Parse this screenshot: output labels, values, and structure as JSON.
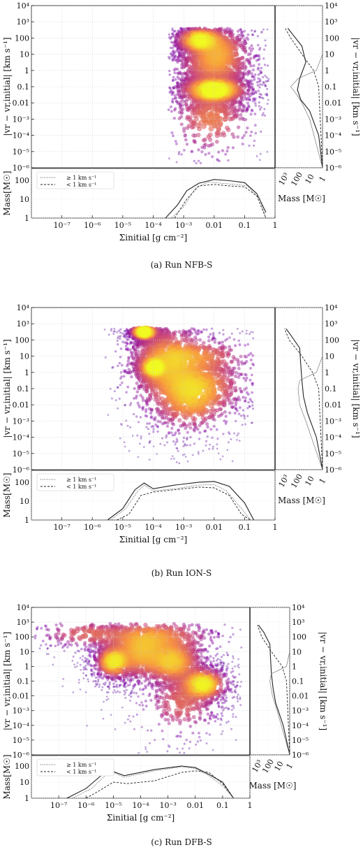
{
  "chart_data": [
    {
      "type": "heatmap",
      "caption": "(a) Run NFB-S",
      "xlabel": "Σinitial [g cm⁻²]",
      "ylabel_left": "|vr − vr,initial| [km s⁻¹]",
      "ylabel_right": "|vr − vr,initial| [km s⁻¹]",
      "hist_ylabel": "Mass[M☉]",
      "side_xlabel": "Mass [M☉]",
      "xlim": [
        1e-08,
        1
      ],
      "ylim": [
        1e-06,
        10000.0
      ],
      "hist_ylim": [
        1,
        300
      ],
      "side_xlim": [
        5000,
        1
      ],
      "x_tick_labels": [
        "10⁻⁷",
        "10⁻⁶",
        "10⁻⁵",
        "10⁻⁴",
        "10⁻³",
        "0.01",
        "0.1",
        "1"
      ],
      "y_tick_labels": [
        "10⁻⁶",
        "10⁻⁵",
        "10⁻⁴",
        "10⁻³",
        "0.01",
        "0.1",
        "1",
        "10",
        "100",
        "10³",
        "10⁴"
      ],
      "hist_tick_labels": [
        "1",
        "10",
        "100"
      ],
      "side_tick_labels": [
        "10³",
        "100",
        "10",
        "1"
      ],
      "legend": [
        "≥ 1 km s⁻¹",
        "< 1 km s⁻¹"
      ],
      "blobs": [
        {
          "x": -2.0,
          "y": -1.2,
          "sx": 0.5,
          "sy": 0.35,
          "w": 1.0
        },
        {
          "x": -2.5,
          "y": 1.9,
          "sx": 0.35,
          "sy": 0.35,
          "w": 0.8
        },
        {
          "x": -1.9,
          "y": 1.3,
          "sx": 0.5,
          "sy": 0.7,
          "w": 0.5
        },
        {
          "x": -2.1,
          "y": -3.0,
          "sx": 0.6,
          "sy": 1.0,
          "w": 0.45
        },
        {
          "x": -2.0,
          "y": 0.2,
          "sx": 0.6,
          "sy": 0.7,
          "w": 0.4
        }
      ],
      "footprint": {
        "x_range": [
          -3.5,
          -0.2
        ],
        "y_base": -5.8,
        "y_top": 2.6
      },
      "hist_total": [
        {
          "x": -3.6,
          "m": 1
        },
        {
          "x": -3.2,
          "m": 5
        },
        {
          "x": -2.9,
          "m": 28
        },
        {
          "x": -2.5,
          "m": 70
        },
        {
          "x": -2.0,
          "m": 110
        },
        {
          "x": -1.5,
          "m": 95
        },
        {
          "x": -1.0,
          "m": 75
        },
        {
          "x": -0.6,
          "m": 20
        },
        {
          "x": -0.3,
          "m": 2
        }
      ],
      "hist_fast": [
        {
          "x": -3.4,
          "m": 1
        },
        {
          "x": -3.0,
          "m": 4
        },
        {
          "x": -2.6,
          "m": 40
        },
        {
          "x": -2.2,
          "m": 80
        },
        {
          "x": -1.8,
          "m": 70
        },
        {
          "x": -1.3,
          "m": 60
        },
        {
          "x": -0.9,
          "m": 50
        },
        {
          "x": -0.5,
          "m": 10
        },
        {
          "x": -0.3,
          "m": 1
        }
      ],
      "hist_slow": [
        {
          "x": -3.3,
          "m": 1
        },
        {
          "x": -2.9,
          "m": 10
        },
        {
          "x": -2.5,
          "m": 50
        },
        {
          "x": -2.0,
          "m": 60
        },
        {
          "x": -1.5,
          "m": 50
        },
        {
          "x": -1.0,
          "m": 45
        },
        {
          "x": -0.6,
          "m": 15
        },
        {
          "x": -0.3,
          "m": 1
        }
      ],
      "side_total": [
        {
          "y": -6,
          "m": 1
        },
        {
          "y": -4,
          "m": 2
        },
        {
          "y": -2.5,
          "m": 10
        },
        {
          "y": -1.8,
          "m": 50
        },
        {
          "y": -1.2,
          "m": 90
        },
        {
          "y": -0.5,
          "m": 60
        },
        {
          "y": 0.5,
          "m": 20
        },
        {
          "y": 1.5,
          "m": 40
        },
        {
          "y": 2.2,
          "m": 200
        },
        {
          "y": 2.6,
          "m": 500
        }
      ],
      "side_fast": [
        {
          "y": -6,
          "m": 1
        },
        {
          "y": -1,
          "m": 2
        },
        {
          "y": 0,
          "m": 5
        },
        {
          "y": 1,
          "m": 40
        },
        {
          "y": 2,
          "m": 300
        },
        {
          "y": 2.6,
          "m": 800
        }
      ],
      "side_slow": [
        {
          "y": -6,
          "m": 1
        },
        {
          "y": -3,
          "m": 10
        },
        {
          "y": -2,
          "m": 40
        },
        {
          "y": -1.5,
          "m": 100
        },
        {
          "y": -1,
          "m": 300
        },
        {
          "y": -0.5,
          "m": 80
        },
        {
          "y": 0,
          "m": 3
        },
        {
          "y": 1,
          "m": 1
        }
      ]
    },
    {
      "type": "heatmap",
      "caption": "(b) Run ION-S",
      "xlabel": "Σinitial [g cm⁻²]",
      "ylabel_left": "|vr − vr,initial| [km s⁻¹]",
      "ylabel_right": "|vr − vr,initial| [km s⁻¹]",
      "hist_ylabel": "Mass[M☉]",
      "side_xlabel": "Mass [M☉]",
      "xlim": [
        1e-08,
        1
      ],
      "ylim": [
        1e-06,
        10000.0
      ],
      "hist_ylim": [
        1,
        300
      ],
      "side_xlim": [
        5000,
        1
      ],
      "x_tick_labels": [
        "10⁻⁷",
        "10⁻⁶",
        "10⁻⁵",
        "10⁻⁴",
        "10⁻³",
        "0.01",
        "0.1",
        "1"
      ],
      "y_tick_labels": [
        "10⁻⁶",
        "10⁻⁵",
        "10⁻⁴",
        "10⁻³",
        "0.01",
        "0.1",
        "1",
        "10",
        "100",
        "10³",
        "10⁴"
      ],
      "hist_tick_labels": [
        "1",
        "10",
        "100"
      ],
      "side_tick_labels": [
        "10³",
        "100",
        "10",
        "1"
      ],
      "legend": [
        "≥ 1 km s⁻¹",
        "< 1 km s⁻¹"
      ],
      "blobs": [
        {
          "x": -4.3,
          "y": 2.5,
          "sx": 0.2,
          "sy": 0.2,
          "w": 1.0
        },
        {
          "x": -3.5,
          "y": 0.5,
          "sx": 0.6,
          "sy": 1.2,
          "w": 0.6
        },
        {
          "x": -2.5,
          "y": -0.8,
          "sx": 0.7,
          "sy": 0.8,
          "w": 0.6
        },
        {
          "x": -2.8,
          "y": -2.0,
          "sx": 0.6,
          "sy": 0.8,
          "w": 0.45
        },
        {
          "x": -4.0,
          "y": 0.3,
          "sx": 0.2,
          "sy": 0.3,
          "w": 0.6
        },
        {
          "x": -2.5,
          "y": 1.0,
          "sx": 0.8,
          "sy": 0.5,
          "w": 0.4
        }
      ],
      "footprint": {
        "x_range": [
          -5.6,
          -0.7
        ],
        "y_base": -5.6,
        "y_top": 2.7
      },
      "hist_total": [
        {
          "x": -5.5,
          "m": 1
        },
        {
          "x": -5.0,
          "m": 4
        },
        {
          "x": -4.6,
          "m": 40
        },
        {
          "x": -4.3,
          "m": 90
        },
        {
          "x": -4.0,
          "m": 45
        },
        {
          "x": -3.3,
          "m": 70
        },
        {
          "x": -2.5,
          "m": 100
        },
        {
          "x": -2.0,
          "m": 110
        },
        {
          "x": -1.5,
          "m": 60
        },
        {
          "x": -1.0,
          "m": 8
        },
        {
          "x": -0.7,
          "m": 1
        }
      ],
      "hist_fast": [
        {
          "x": -5.4,
          "m": 1
        },
        {
          "x": -4.9,
          "m": 4
        },
        {
          "x": -4.5,
          "m": 35
        },
        {
          "x": -4.3,
          "m": 70
        },
        {
          "x": -4.0,
          "m": 35
        },
        {
          "x": -3.3,
          "m": 45
        },
        {
          "x": -2.5,
          "m": 70
        },
        {
          "x": -2.0,
          "m": 75
        },
        {
          "x": -1.6,
          "m": 35
        },
        {
          "x": -1.1,
          "m": 4
        },
        {
          "x": -0.8,
          "m": 1
        }
      ],
      "hist_slow": [
        {
          "x": -5.2,
          "m": 1
        },
        {
          "x": -4.8,
          "m": 2
        },
        {
          "x": -4.4,
          "m": 20
        },
        {
          "x": -4.0,
          "m": 30
        },
        {
          "x": -3.3,
          "m": 40
        },
        {
          "x": -2.5,
          "m": 55
        },
        {
          "x": -2.0,
          "m": 50
        },
        {
          "x": -1.5,
          "m": 20
        },
        {
          "x": -1.1,
          "m": 2
        },
        {
          "x": -0.8,
          "m": 1
        }
      ],
      "side_total": [
        {
          "y": -6,
          "m": 1
        },
        {
          "y": -4,
          "m": 3
        },
        {
          "y": -2.5,
          "m": 15
        },
        {
          "y": -1.5,
          "m": 30
        },
        {
          "y": -0.5,
          "m": 40
        },
        {
          "y": 0.5,
          "m": 50
        },
        {
          "y": 1.5,
          "m": 60
        },
        {
          "y": 2.3,
          "m": 300
        },
        {
          "y": 2.7,
          "m": 700
        }
      ],
      "side_fast": [
        {
          "y": -6,
          "m": 1
        },
        {
          "y": -1,
          "m": 2
        },
        {
          "y": 0,
          "m": 6
        },
        {
          "y": 1,
          "m": 40
        },
        {
          "y": 2,
          "m": 400
        },
        {
          "y": 2.7,
          "m": 900
        }
      ],
      "side_slow": [
        {
          "y": -6,
          "m": 1
        },
        {
          "y": -3,
          "m": 20
        },
        {
          "y": -2,
          "m": 60
        },
        {
          "y": -1,
          "m": 80
        },
        {
          "y": -0.5,
          "m": 60
        },
        {
          "y": 0,
          "m": 3
        },
        {
          "y": 1,
          "m": 1
        }
      ]
    },
    {
      "type": "heatmap",
      "caption": "(c) Run DFB-S",
      "xlabel": "Σinitial [g cm⁻²]",
      "ylabel_left": "|vr − vr,initial| [km s⁻¹]",
      "ylabel_right": "|vr − vr,initial| [km s⁻¹]",
      "hist_ylabel": "Mass[M☉]",
      "side_xlabel": "Mass [M☉]",
      "xlim": [
        1e-08,
        1
      ],
      "ylim": [
        1e-06,
        10000.0
      ],
      "hist_ylim": [
        1,
        300
      ],
      "side_xlim": [
        5000,
        1
      ],
      "x_tick_labels": [
        "10⁻⁷",
        "10⁻⁶",
        "10⁻⁵",
        "10⁻⁴",
        "10⁻³",
        "0.01",
        "0.1",
        "1"
      ],
      "y_tick_labels": [
        "10⁻⁶",
        "10⁻⁵",
        "10⁻⁴",
        "10⁻³",
        "0.01",
        "0.1",
        "1",
        "10",
        "100",
        "10³",
        "10⁴"
      ],
      "hist_tick_labels": [
        "1",
        "10",
        "100"
      ],
      "side_tick_labels": [
        "10³",
        "100",
        "10",
        "1"
      ],
      "legend": [
        "≥ 1 km s⁻¹",
        "< 1 km s⁻¹"
      ],
      "blobs": [
        {
          "x": -5.0,
          "y": 0.3,
          "sx": 0.3,
          "sy": 0.5,
          "w": 0.8
        },
        {
          "x": -4.0,
          "y": 0.8,
          "sx": 0.6,
          "sy": 0.8,
          "w": 0.6
        },
        {
          "x": -2.8,
          "y": 0.3,
          "sx": 0.5,
          "sy": 0.7,
          "w": 0.7
        },
        {
          "x": -1.7,
          "y": -1.2,
          "sx": 0.4,
          "sy": 0.5,
          "w": 0.9
        },
        {
          "x": -3.5,
          "y": 2.0,
          "sx": 1.0,
          "sy": 0.6,
          "w": 0.5
        },
        {
          "x": -6.0,
          "y": 2.2,
          "sx": 0.8,
          "sy": 0.4,
          "w": 0.35
        },
        {
          "x": -2.5,
          "y": -2.5,
          "sx": 0.6,
          "sy": 1.0,
          "w": 0.35
        }
      ],
      "footprint": {
        "x_range": [
          -7.9,
          -0.3
        ],
        "y_base": -5.9,
        "y_top": 2.9
      },
      "hist_total": [
        {
          "x": -6.7,
          "m": 1
        },
        {
          "x": -6.0,
          "m": 4
        },
        {
          "x": -5.4,
          "m": 30
        },
        {
          "x": -5.0,
          "m": 45
        },
        {
          "x": -4.6,
          "m": 25
        },
        {
          "x": -3.5,
          "m": 60
        },
        {
          "x": -2.5,
          "m": 100
        },
        {
          "x": -2.0,
          "m": 80
        },
        {
          "x": -1.5,
          "m": 30
        },
        {
          "x": -1.0,
          "m": 10
        },
        {
          "x": -0.6,
          "m": 1
        }
      ],
      "hist_fast": [
        {
          "x": -6.5,
          "m": 1
        },
        {
          "x": -5.8,
          "m": 4
        },
        {
          "x": -5.3,
          "m": 25
        },
        {
          "x": -5.0,
          "m": 40
        },
        {
          "x": -4.6,
          "m": 20
        },
        {
          "x": -3.5,
          "m": 50
        },
        {
          "x": -2.5,
          "m": 90
        },
        {
          "x": -2.0,
          "m": 70
        },
        {
          "x": -1.5,
          "m": 25
        },
        {
          "x": -1.0,
          "m": 6
        },
        {
          "x": -0.6,
          "m": 1
        }
      ],
      "hist_slow": [
        {
          "x": -6.0,
          "m": 1
        },
        {
          "x": -5.5,
          "m": 3
        },
        {
          "x": -5.0,
          "m": 10
        },
        {
          "x": -4.5,
          "m": 8
        },
        {
          "x": -3.5,
          "m": 12
        },
        {
          "x": -2.5,
          "m": 40
        },
        {
          "x": -2.0,
          "m": 50
        },
        {
          "x": -1.5,
          "m": 40
        },
        {
          "x": -1.0,
          "m": 8
        },
        {
          "x": -0.6,
          "m": 1
        }
      ],
      "side_total": [
        {
          "y": -6,
          "m": 1
        },
        {
          "y": -4,
          "m": 4
        },
        {
          "y": -2.5,
          "m": 20
        },
        {
          "y": -1.5,
          "m": 35
        },
        {
          "y": -0.5,
          "m": 50
        },
        {
          "y": 0.5,
          "m": 60
        },
        {
          "y": 1.5,
          "m": 70
        },
        {
          "y": 2.3,
          "m": 250
        },
        {
          "y": 2.8,
          "m": 800
        }
      ],
      "side_fast": [
        {
          "y": -6,
          "m": 1
        },
        {
          "y": -1,
          "m": 2
        },
        {
          "y": 0,
          "m": 5
        },
        {
          "y": 1,
          "m": 50
        },
        {
          "y": 2,
          "m": 400
        },
        {
          "y": 2.8,
          "m": 1000
        }
      ],
      "side_slow": [
        {
          "y": -6,
          "m": 1
        },
        {
          "y": -3,
          "m": 15
        },
        {
          "y": -2,
          "m": 40
        },
        {
          "y": -1,
          "m": 70
        },
        {
          "y": -0.5,
          "m": 50
        },
        {
          "y": 0,
          "m": 2
        },
        {
          "y": 1,
          "m": 1
        }
      ]
    }
  ]
}
